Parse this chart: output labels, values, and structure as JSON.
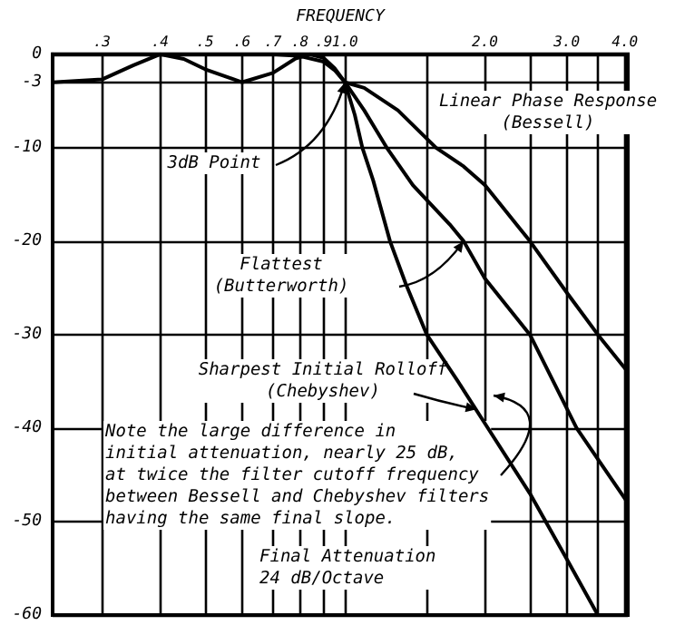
{
  "chart_data": {
    "type": "line",
    "xlabel": "FREQUENCY",
    "log": "x",
    "xlim": [
      0.235,
      4.06
    ],
    "ylim": [
      -60,
      0
    ],
    "xticks": [
      {
        "value": 0.3,
        "label": ".3"
      },
      {
        "value": 0.4,
        "label": ".4"
      },
      {
        "value": 0.5,
        "label": ".5"
      },
      {
        "value": 0.6,
        "label": ".6"
      },
      {
        "value": 0.7,
        "label": ".7"
      },
      {
        "value": 0.8,
        "label": ".8"
      },
      {
        "value": 0.9,
        "label": ".9"
      },
      {
        "value": 1.0,
        "label": "1.0"
      },
      {
        "value": 1.5,
        "label": null
      },
      {
        "value": 2.0,
        "label": "2.0"
      },
      {
        "value": 2.5,
        "label": null
      },
      {
        "value": 3.0,
        "label": "3.0"
      },
      {
        "value": 3.5,
        "label": null
      },
      {
        "value": 4.0,
        "label": "4.0"
      }
    ],
    "yticks": [
      0,
      -3,
      -10,
      -20,
      -30,
      -40,
      -50,
      -60
    ],
    "grid": true,
    "marker": "none",
    "line_style": "solid",
    "series": [
      {
        "color": "#000000",
        "x": [
          0.235,
          0.3,
          0.35,
          0.4,
          0.45,
          0.5,
          0.6,
          0.7,
          0.78,
          0.84,
          0.9,
          0.95,
          1.0,
          1.05,
          1.09,
          1.15,
          1.25,
          1.35,
          1.5,
          1.75,
          2.0,
          2.5,
          3.0,
          3.5
        ],
        "values": [
          -3,
          -2.7,
          -1.2,
          0,
          -0.5,
          -1.6,
          -3,
          -2,
          -0.5,
          0,
          -0.4,
          -1.5,
          -3,
          -6.5,
          -10,
          -13.5,
          -20,
          -24.5,
          -30,
          -35,
          -39.5,
          -47,
          -54,
          -60
        ]
      },
      {
        "color": "#000000",
        "x": [
          0.235,
          0.5,
          0.7,
          0.8,
          0.9,
          0.95,
          1.0,
          1.1,
          1.23,
          1.4,
          1.68,
          1.8,
          2.0,
          2.5,
          3.15,
          4.06
        ],
        "values": [
          0,
          0,
          0,
          -0.2,
          -0.8,
          -1.7,
          -3,
          -6,
          -10,
          -14,
          -18.2,
          -20,
          -24,
          -30,
          -40,
          -48
        ]
      },
      {
        "color": "#000000",
        "x": [
          1.0,
          1.1,
          1.3,
          1.57,
          1.8,
          2.0,
          2.5,
          3.0,
          3.5,
          4.06
        ],
        "values": [
          -3,
          -3.6,
          -6,
          -10,
          -12,
          -14,
          -20,
          -25.5,
          -30,
          -34
        ]
      }
    ],
    "annotations": [
      {
        "text": "3dB Point",
        "x": 1.0,
        "y": -3
      },
      "Linear Phase Response\n(Bessell)",
      "Flattest\n(Butterworth)",
      {
        "text": "Sharpest Initial Rolloff\n(Chebyshev)",
        "x": 1.92,
        "y": -38
      },
      "Note the large difference in\ninitial attenuation, nearly 25 dB,\nat twice the filter cutoff frequency\nbetween Bessell and Chebyshev filters\nhaving the same final slope.",
      "Final Attenuation\n24 dB/Octave"
    ]
  }
}
